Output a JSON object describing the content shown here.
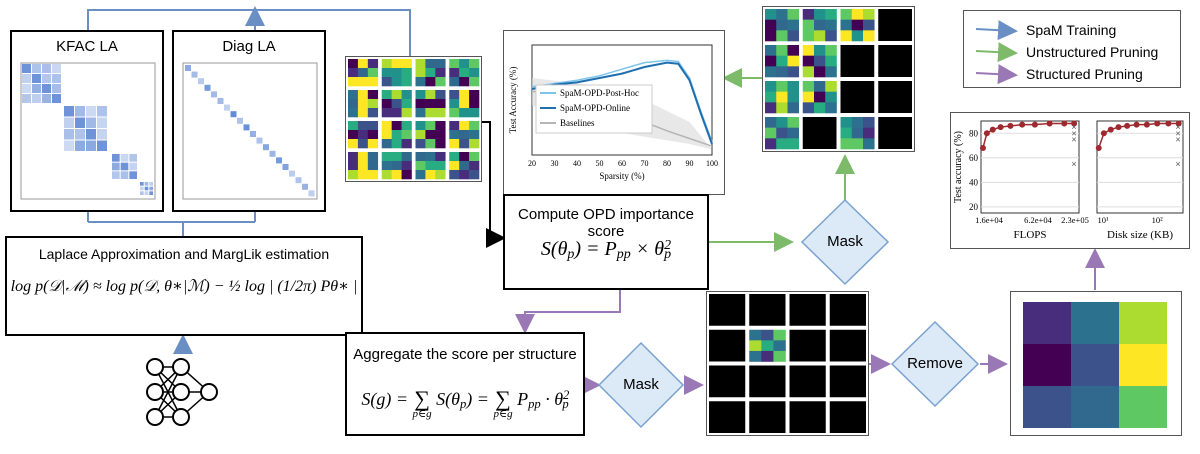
{
  "colors": {
    "training": "#6a8fc4",
    "unstructured": "#7dbb6a",
    "structured": "#9a78b5",
    "diamond_fill": "#dce9f7",
    "diamond_stroke": "#7aa2cf",
    "viridis": [
      "#440154",
      "#3b528b",
      "#21918c",
      "#5ec962",
      "#fde725",
      "#2c728e",
      "#472d7b",
      "#27ad81",
      "#addc30",
      "#31688e"
    ]
  },
  "kfac": {
    "title": "KFAC LA"
  },
  "diag": {
    "title": "Diag LA"
  },
  "laplace": {
    "title": "Laplace Approximation and MargLik estimation",
    "equation": "log p(𝒟|ℳ) ≈ log p(𝒟, θ∗|ℳ) − ½ log | (1/2π) Pθ∗ |"
  },
  "opd": {
    "title": "Compute OPD importance score",
    "eq_lhs": "S(θ",
    "eq_lhs_sub": "p",
    "eq_mid": ") = P",
    "eq_mid_sub": "pp",
    "eq_rhs": " × θ",
    "eq_rhs_sup": "2",
    "eq_rhs_sub": "p"
  },
  "aggregate": {
    "title": "Aggregate the score per structure",
    "equation": "S(g) = Σp∈g S(θp) = Σp∈g Ppp · θp²",
    "eq_part1": "S(g) = ",
    "eq_part2": " S(θ",
    "eq_part3": ") = ",
    "eq_part4": " P",
    "eq_part5": " · θ",
    "sum_symbol": "∑",
    "sum_index": "p∈g",
    "sub_p": "p",
    "sub_pp": "pp",
    "sup_2": "2"
  },
  "diamonds": {
    "mask_top": "Mask",
    "mask_bottom": "Mask",
    "remove": "Remove"
  },
  "legend": [
    {
      "label": "SpaM Training",
      "color": "#6a8fc4"
    },
    {
      "label": "Unstructured Pruning",
      "color": "#7dbb6a"
    },
    {
      "label": "Structured Pruning",
      "color": "#9a78b5"
    }
  ],
  "chart_data": [
    {
      "type": "line",
      "xlabel": "Sparsity (%)",
      "ylabel": "Test Accuracy (%)",
      "xlim": [
        20,
        100
      ],
      "x_ticks": [
        20,
        30,
        40,
        50,
        60,
        70,
        80,
        90,
        100
      ],
      "legend_placement": "bottom-left",
      "series": [
        {
          "name": "SpaM-OPD-Post-Hoc",
          "color": "#7cc4ea",
          "x": [
            20,
            30,
            40,
            50,
            60,
            70,
            80,
            85,
            90,
            95,
            100
          ],
          "y": [
            62,
            65,
            68,
            72,
            78,
            84,
            86,
            85,
            70,
            40,
            12
          ]
        },
        {
          "name": "SpaM-OPD-Online",
          "color": "#1f6fb0",
          "x": [
            20,
            30,
            40,
            50,
            60,
            70,
            80,
            85,
            90,
            95,
            100
          ],
          "y": [
            60,
            64,
            66,
            70,
            74,
            80,
            84,
            83,
            68,
            38,
            10
          ]
        },
        {
          "name": "Baselines",
          "color": "#b5b5b5",
          "x": [
            20,
            30,
            40,
            50,
            60,
            70,
            80,
            90,
            100
          ],
          "y": [
            58,
            55,
            50,
            45,
            38,
            30,
            22,
            15,
            8
          ]
        }
      ]
    },
    {
      "type": "scatter",
      "xlabel": "FLOPS",
      "ylabel": "Test accuracy (%)",
      "x_tick_labels": [
        "1.6e+04",
        "6.2e+04",
        "2.3e+05"
      ],
      "y_ticks": [
        20,
        40,
        60,
        80
      ],
      "ylim": [
        15,
        90
      ],
      "series": [
        {
          "name": "",
          "x": [
            0.02,
            0.06,
            0.12,
            0.2,
            0.3,
            0.42,
            0.55,
            0.7,
            0.85,
            0.95
          ],
          "y": [
            68,
            80,
            83,
            85,
            86,
            87,
            87,
            88,
            88,
            88
          ]
        }
      ]
    },
    {
      "type": "scatter",
      "xlabel": "Disk size (KB)",
      "ylabel": "",
      "x_tick_labels": [
        "10¹",
        "10²"
      ],
      "y_ticks": [
        20,
        40,
        60,
        80
      ],
      "ylim": [
        15,
        90
      ],
      "series": [
        {
          "name": "",
          "x": [
            0.02,
            0.08,
            0.16,
            0.25,
            0.35,
            0.46,
            0.58,
            0.7,
            0.83,
            0.95
          ],
          "y": [
            68,
            80,
            83,
            85,
            86,
            87,
            87,
            88,
            88,
            88
          ]
        }
      ]
    }
  ]
}
